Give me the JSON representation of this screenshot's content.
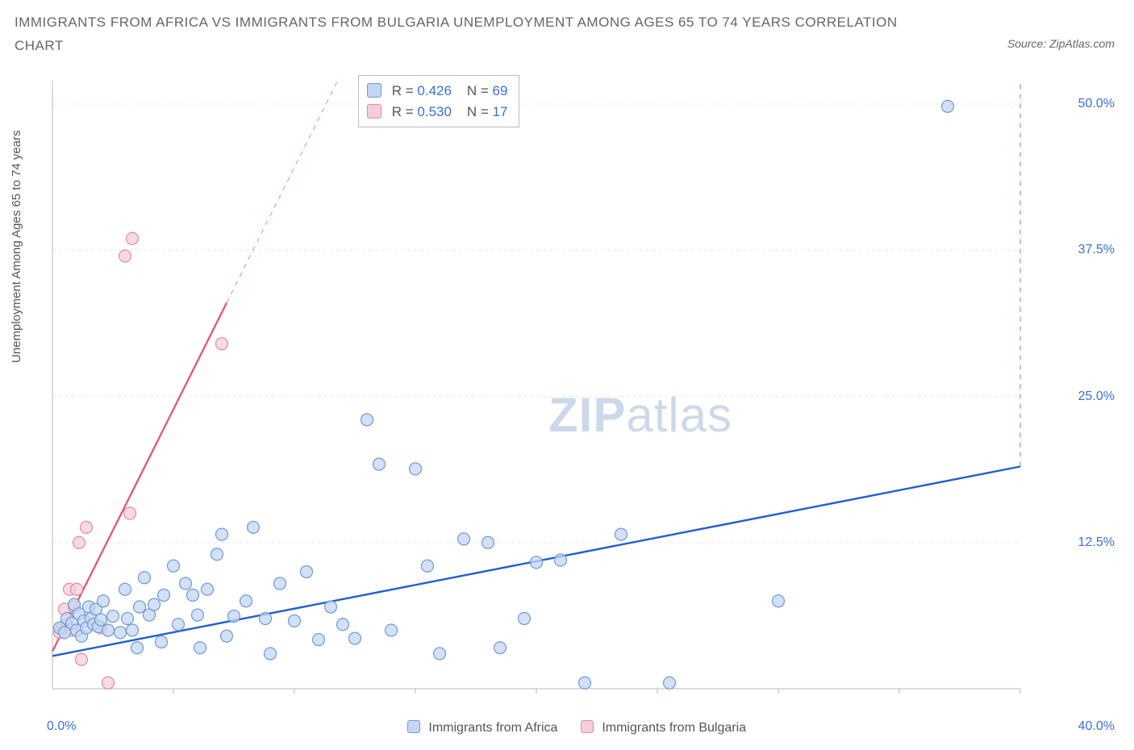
{
  "title": "IMMIGRANTS FROM AFRICA VS IMMIGRANTS FROM BULGARIA UNEMPLOYMENT AMONG AGES 65 TO 74 YEARS CORRELATION CHART",
  "source": "Source: ZipAtlas.com",
  "ylabel": "Unemployment Among Ages 65 to 74 years",
  "watermark_a": "ZIP",
  "watermark_b": "atlas",
  "chart": {
    "type": "scatter",
    "xlim": [
      0,
      40
    ],
    "ylim": [
      0,
      52
    ],
    "x_tick_min": "0.0%",
    "x_tick_max": "40.0%",
    "x_minor_ticks": [
      5,
      10,
      15,
      20,
      25,
      30,
      35,
      40
    ],
    "y_ticks": [
      {
        "v": 12.5,
        "label": "12.5%"
      },
      {
        "v": 25.0,
        "label": "25.0%"
      },
      {
        "v": 37.5,
        "label": "37.5%"
      },
      {
        "v": 50.0,
        "label": "50.0%"
      }
    ],
    "background_color": "#ffffff",
    "grid_color": "#e8e8e8",
    "axis_color": "#b8b8b8",
    "text_color": "#555555",
    "value_color": "#3b6fd6",
    "marker_radius": 7.5,
    "marker_stroke_width": 1.2,
    "line_width": 2.4,
    "dash_pattern": "6 6",
    "series": [
      {
        "name": "Immigrants from Africa",
        "fill": "#c4d6f2",
        "stroke": "#6f9ad6",
        "line_color": "#1f5fd0",
        "R_label": "R =",
        "R": "0.426",
        "N_label": "N =",
        "N": "69",
        "trend": {
          "x1": 0,
          "y1": 2.8,
          "x2": 40,
          "y2": 19.0,
          "extend_dash_to_y": 52
        },
        "points": [
          [
            0.3,
            5.2
          ],
          [
            0.5,
            4.8
          ],
          [
            0.6,
            6.0
          ],
          [
            0.8,
            5.6
          ],
          [
            0.9,
            7.2
          ],
          [
            1.0,
            5.0
          ],
          [
            1.1,
            6.4
          ],
          [
            1.2,
            4.5
          ],
          [
            1.3,
            5.8
          ],
          [
            1.4,
            5.2
          ],
          [
            1.5,
            7.0
          ],
          [
            1.6,
            6.0
          ],
          [
            1.7,
            5.5
          ],
          [
            1.8,
            6.8
          ],
          [
            1.9,
            5.3
          ],
          [
            2.0,
            5.9
          ],
          [
            2.1,
            7.5
          ],
          [
            2.3,
            5.0
          ],
          [
            2.5,
            6.2
          ],
          [
            2.8,
            4.8
          ],
          [
            3.0,
            8.5
          ],
          [
            3.1,
            6.0
          ],
          [
            3.3,
            5.0
          ],
          [
            3.5,
            3.5
          ],
          [
            3.6,
            7.0
          ],
          [
            3.8,
            9.5
          ],
          [
            4.0,
            6.3
          ],
          [
            4.2,
            7.2
          ],
          [
            4.5,
            4.0
          ],
          [
            4.6,
            8.0
          ],
          [
            5.0,
            10.5
          ],
          [
            5.2,
            5.5
          ],
          [
            5.5,
            9.0
          ],
          [
            5.8,
            8.0
          ],
          [
            6.0,
            6.3
          ],
          [
            6.1,
            3.5
          ],
          [
            6.4,
            8.5
          ],
          [
            6.8,
            11.5
          ],
          [
            7.0,
            13.2
          ],
          [
            7.2,
            4.5
          ],
          [
            7.5,
            6.2
          ],
          [
            8.0,
            7.5
          ],
          [
            8.3,
            13.8
          ],
          [
            8.8,
            6.0
          ],
          [
            9.0,
            3.0
          ],
          [
            9.4,
            9.0
          ],
          [
            10.0,
            5.8
          ],
          [
            10.5,
            10.0
          ],
          [
            11.0,
            4.2
          ],
          [
            11.5,
            7.0
          ],
          [
            12.0,
            5.5
          ],
          [
            12.5,
            4.3
          ],
          [
            13.0,
            23.0
          ],
          [
            13.5,
            19.2
          ],
          [
            14.0,
            5.0
          ],
          [
            15.0,
            18.8
          ],
          [
            15.5,
            10.5
          ],
          [
            16.0,
            3.0
          ],
          [
            17.0,
            12.8
          ],
          [
            18.0,
            12.5
          ],
          [
            18.5,
            3.5
          ],
          [
            19.5,
            6.0
          ],
          [
            20.0,
            10.8
          ],
          [
            21.0,
            11.0
          ],
          [
            22.0,
            0.5
          ],
          [
            23.5,
            13.2
          ],
          [
            25.5,
            0.5
          ],
          [
            30.0,
            7.5
          ],
          [
            37.0,
            49.8
          ]
        ]
      },
      {
        "name": "Immigrants from Bulgaria",
        "fill": "#f6cdd7",
        "stroke": "#e48ba1",
        "line_color": "#e15a7d",
        "R_label": "R =",
        "R": "0.530",
        "N_label": "N =",
        "N": "17",
        "trend": {
          "x1": 0,
          "y1": 3.2,
          "x2": 7.2,
          "y2": 33.0,
          "extend_dash_to_y": 52
        },
        "points": [
          [
            0.3,
            4.8
          ],
          [
            0.4,
            5.2
          ],
          [
            0.5,
            6.8
          ],
          [
            0.6,
            5.5
          ],
          [
            0.7,
            8.5
          ],
          [
            0.8,
            5.0
          ],
          [
            0.9,
            7.0
          ],
          [
            1.0,
            8.5
          ],
          [
            1.1,
            12.5
          ],
          [
            1.2,
            2.5
          ],
          [
            1.4,
            13.8
          ],
          [
            2.0,
            5.2
          ],
          [
            2.3,
            0.5
          ],
          [
            3.2,
            15.0
          ],
          [
            3.0,
            37.0
          ],
          [
            3.3,
            38.5
          ],
          [
            7.0,
            29.5
          ]
        ]
      }
    ],
    "bottom_legend": [
      {
        "swatch": "#c4d6f2",
        "border": "#6f9ad6",
        "label": "Immigrants from Africa"
      },
      {
        "swatch": "#f6cdd7",
        "border": "#e48ba1",
        "label": "Immigrants from Bulgaria"
      }
    ]
  }
}
